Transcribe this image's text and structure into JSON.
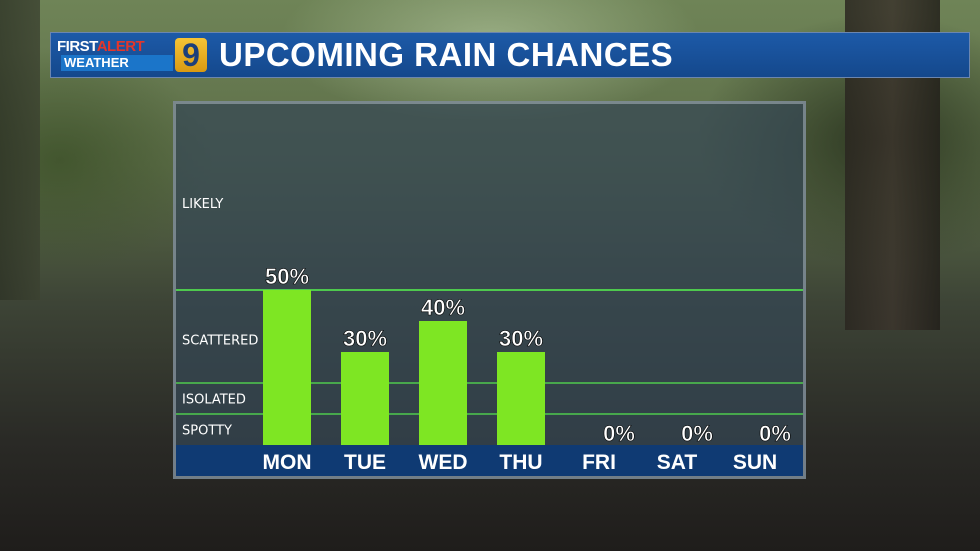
{
  "header": {
    "logo_first": "FIRST",
    "logo_alert": "ALERT",
    "logo_weather": "WEATHER",
    "logo_channel": "9",
    "title": "UPCOMING RAIN CHANCES"
  },
  "colors": {
    "bar": "#7ee623",
    "threshold_line": "#4ec94e",
    "axis_band": "#0f3a73",
    "header_bg": "#1a54a0"
  },
  "chart_data": {
    "type": "bar",
    "categories": [
      "MON",
      "TUE",
      "WED",
      "THU",
      "FRI",
      "SAT",
      "SUN"
    ],
    "values": [
      50,
      30,
      40,
      30,
      0,
      0,
      0
    ],
    "value_labels": [
      "50%",
      "30%",
      "40%",
      "30%",
      "0%",
      "0%",
      "0%"
    ],
    "ylim": [
      0,
      100
    ],
    "title": "UPCOMING RAIN CHANCES",
    "xlabel": "",
    "ylabel": "",
    "threshold_lines": [
      10,
      20,
      50
    ],
    "categories_labels": [
      {
        "label": "LIKELY",
        "value": 78
      },
      {
        "label": "SCATTERED",
        "value": 34
      },
      {
        "label": "ISOLATED",
        "value": 15
      },
      {
        "label": "SPOTTY",
        "value": 5
      }
    ]
  }
}
